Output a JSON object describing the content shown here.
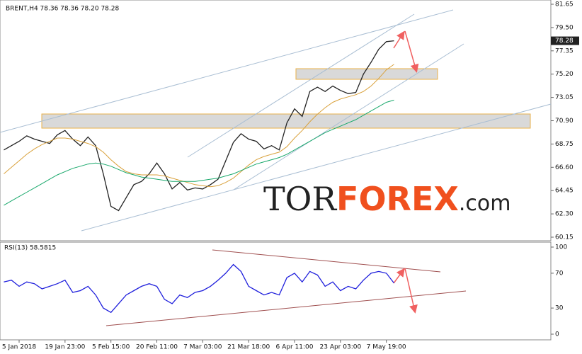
{
  "chart_data": [
    {
      "type": "line",
      "title": "BRENT,H4  78.36 78.36 78.20 78.28",
      "last_price": "78.28",
      "watermark": [
        "TOR",
        "FOREX",
        ".com"
      ],
      "ylim": [
        60.15,
        81.65
      ],
      "yticks": [
        81.65,
        {
          "value": 79.5,
          "label": "79.50"
        },
        77.35,
        {
          "value": 75.2,
          "label": "75.20"
        },
        73.05,
        {
          "value": 70.9,
          "label": "70.90"
        },
        68.75,
        {
          "value": 66.6,
          "label": "66.60"
        },
        64.45,
        {
          "value": 62.3,
          "label": "62.30"
        },
        60.15
      ],
      "series": [
        {
          "color": "#222222",
          "values": [
            68.2,
            68.6,
            69.0,
            69.5,
            69.2,
            69.0,
            68.8,
            69.6,
            70.0,
            69.2,
            68.6,
            69.4,
            68.6,
            66.0,
            63.0,
            62.6,
            63.8,
            65.0,
            65.3,
            66.0,
            67.0,
            66.0,
            64.6,
            65.2,
            64.5,
            64.7,
            64.6,
            65.0,
            65.5,
            67.2,
            68.9,
            69.7,
            69.2,
            69.0,
            68.3,
            68.6,
            68.2,
            70.7,
            72.0,
            71.3,
            73.6,
            74.0,
            73.6,
            74.1,
            73.7,
            73.4,
            73.5,
            75.2,
            76.3,
            77.5,
            78.2,
            78.28
          ]
        },
        {
          "color": "#d9a13b",
          "values": [
            66.0,
            66.6,
            67.2,
            67.8,
            68.3,
            68.7,
            69.0,
            69.3,
            69.3,
            69.2,
            69.0,
            68.8,
            68.5,
            68.0,
            67.3,
            66.7,
            66.2,
            66.0,
            65.9,
            65.9,
            65.9,
            65.8,
            65.6,
            65.4,
            65.2,
            65.0,
            64.9,
            64.8,
            64.9,
            65.2,
            65.6,
            66.2,
            66.8,
            67.3,
            67.6,
            67.8,
            68.0,
            68.5,
            69.3,
            70.0,
            70.8,
            71.5,
            72.1,
            72.6,
            72.9,
            73.1,
            73.3,
            73.6,
            74.1,
            74.8,
            75.6,
            76.1
          ]
        },
        {
          "color": "#18a86b",
          "values": [
            63.1,
            63.5,
            63.9,
            64.3,
            64.7,
            65.1,
            65.5,
            65.9,
            66.2,
            66.5,
            66.7,
            66.9,
            67.0,
            66.9,
            66.7,
            66.4,
            66.1,
            65.9,
            65.7,
            65.6,
            65.5,
            65.4,
            65.3,
            65.3,
            65.3,
            65.3,
            65.4,
            65.5,
            65.6,
            65.8,
            66.0,
            66.3,
            66.6,
            66.9,
            67.1,
            67.3,
            67.5,
            67.8,
            68.2,
            68.6,
            69.0,
            69.4,
            69.8,
            70.1,
            70.4,
            70.7,
            71.0,
            71.4,
            71.8,
            72.2,
            72.6,
            72.8
          ]
        }
      ]
    },
    {
      "type": "line",
      "title": "RSI(13) 58.5815",
      "ylim": [
        0,
        100
      ],
      "yticks": [
        100,
        70,
        30,
        0
      ],
      "categories": [
        null,
        null,
        "5 Jan 2018",
        null,
        null,
        null,
        null,
        null,
        "19 Jan 23:00",
        null,
        null,
        null,
        null,
        null,
        "5 Feb 15:00",
        null,
        null,
        null,
        null,
        null,
        "20 Feb 11:00",
        null,
        null,
        null,
        null,
        null,
        "7 Mar 03:00",
        null,
        null,
        null,
        null,
        null,
        "21 Mar 18:00",
        null,
        null,
        null,
        null,
        null,
        "6 Apr 11:00",
        null,
        null,
        null,
        null,
        null,
        "23 Apr 03:00",
        null,
        null,
        null,
        null,
        null,
        "7 May 19:00",
        null,
        null,
        null,
        null,
        null,
        null,
        null,
        null,
        null,
        null,
        null,
        null,
        null,
        null,
        null,
        null,
        null,
        null,
        null,
        null,
        null
      ],
      "series": [
        {
          "color": "#1f1fdc",
          "values": [
            60,
            62,
            55,
            60,
            58,
            52,
            55,
            58,
            62,
            48,
            50,
            55,
            45,
            30,
            25,
            35,
            45,
            50,
            55,
            58,
            55,
            40,
            35,
            45,
            42,
            48,
            50,
            55,
            62,
            70,
            80,
            72,
            55,
            50,
            45,
            48,
            45,
            65,
            70,
            60,
            72,
            68,
            55,
            60,
            50,
            55,
            52,
            62,
            70,
            72,
            70,
            58.5815,
            null,
            null,
            null,
            null,
            null,
            null,
            null,
            null,
            null,
            null,
            null,
            null,
            null,
            null,
            null,
            null,
            null,
            null,
            null,
            null
          ]
        }
      ]
    }
  ]
}
